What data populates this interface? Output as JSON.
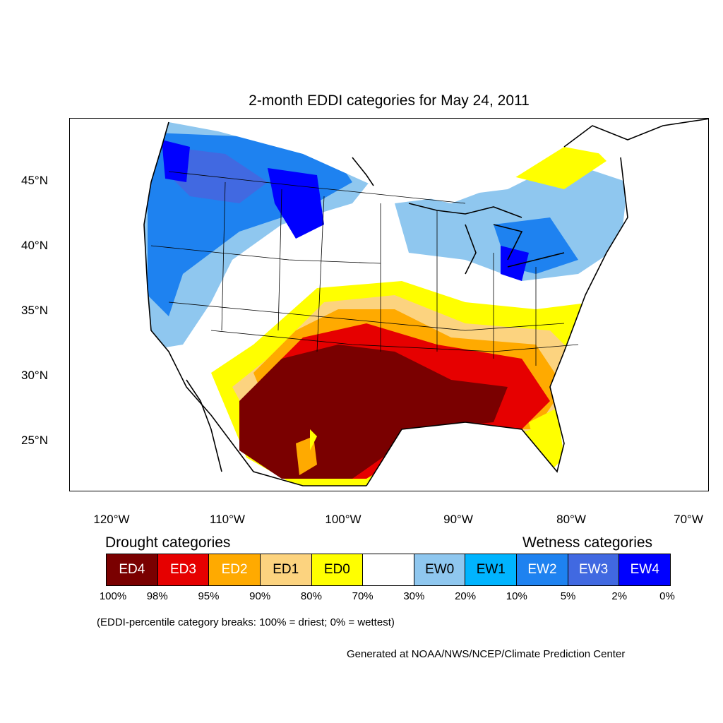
{
  "title": "2-month EDDI categories for May 24, 2011",
  "map": {
    "lat_labels": [
      "45°N",
      "40°N",
      "35°N",
      "30°N",
      "25°N"
    ],
    "lon_labels": [
      "120°W",
      "110°W",
      "100°W",
      "90°W",
      "80°W",
      "70°W"
    ]
  },
  "legend": {
    "drought_heading": "Drought categories",
    "wetness_heading": "Wetness categories",
    "categories": [
      {
        "label": "ED4",
        "color": "#7a0000",
        "text_color": "#ffffff"
      },
      {
        "label": "ED3",
        "color": "#e60000",
        "text_color": "#ffffff"
      },
      {
        "label": "ED2",
        "color": "#ffaa00",
        "text_color": "#ffffff"
      },
      {
        "label": "ED1",
        "color": "#fcd37f",
        "text_color": "#000000"
      },
      {
        "label": "ED0",
        "color": "#ffff00",
        "text_color": "#000000"
      },
      {
        "label": "",
        "color": "#ffffff",
        "text_color": "#000000"
      },
      {
        "label": "EW0",
        "color": "#8fc7ef",
        "text_color": "#000000"
      },
      {
        "label": "EW1",
        "color": "#00b4ff",
        "text_color": "#000000"
      },
      {
        "label": "EW2",
        "color": "#1e82f0",
        "text_color": "#ffffff"
      },
      {
        "label": "EW3",
        "color": "#4169e1",
        "text_color": "#ffffff"
      },
      {
        "label": "EW4",
        "color": "#0000ff",
        "text_color": "#ffffff"
      }
    ],
    "ticks": [
      "100%",
      "98%",
      "95%",
      "90%",
      "80%",
      "70%",
      "30%",
      "20%",
      "10%",
      "5%",
      "2%",
      "0%"
    ]
  },
  "note": "(EDDI-percentile category breaks: 100% = driest; 0% = wettest)",
  "credit": "Generated at NOAA/NWS/NCEP/Climate Prediction Center"
}
